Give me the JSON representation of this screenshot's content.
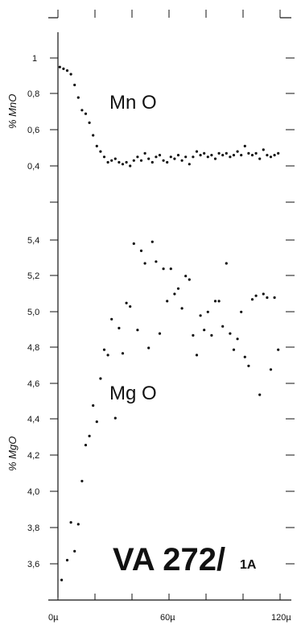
{
  "chart_data": [
    {
      "type": "scatter",
      "title": "Mn O",
      "ylabel": "% MnO",
      "xlabel": "",
      "x_tick_labels": [
        "0µ",
        "60µ",
        "120µ"
      ],
      "xlim": [
        0,
        120
      ],
      "ylim": [
        0.27,
        1.05
      ],
      "y_ticks": [
        "1",
        "0,8",
        "0,6",
        "0,4"
      ],
      "grid": false,
      "series": [
        {
          "x": [
            1,
            3,
            5,
            7,
            9,
            11,
            13,
            15,
            17,
            19,
            21,
            23,
            25,
            27,
            29,
            31,
            33,
            35,
            37,
            39,
            41,
            43,
            45,
            47,
            49,
            51,
            53,
            55,
            57,
            59,
            61,
            63,
            65,
            67,
            69,
            71,
            73,
            75,
            77,
            79,
            81,
            83,
            85,
            87,
            89,
            91,
            93,
            95,
            97,
            99,
            101,
            103,
            105,
            107,
            109,
            111,
            113,
            115,
            117,
            119
          ],
          "y": [
            0.95,
            0.94,
            0.93,
            0.91,
            0.85,
            0.78,
            0.71,
            0.69,
            0.64,
            0.57,
            0.51,
            0.48,
            0.45,
            0.42,
            0.43,
            0.44,
            0.42,
            0.41,
            0.42,
            0.4,
            0.43,
            0.45,
            0.43,
            0.47,
            0.44,
            0.42,
            0.45,
            0.46,
            0.43,
            0.42,
            0.45,
            0.44,
            0.46,
            0.43,
            0.45,
            0.41,
            0.45,
            0.48,
            0.46,
            0.47,
            0.45,
            0.46,
            0.44,
            0.47,
            0.46,
            0.47,
            0.45,
            0.46,
            0.48,
            0.46,
            0.51,
            0.47,
            0.46,
            0.47,
            0.44,
            0.49,
            0.46,
            0.45,
            0.46,
            0.47
          ]
        }
      ]
    },
    {
      "type": "scatter",
      "title": "Mg O",
      "ylabel": "% MgO",
      "xlabel": "",
      "x_tick_labels": [
        "0µ",
        "60µ",
        "120µ"
      ],
      "xlim": [
        0,
        120
      ],
      "ylim": [
        3.45,
        5.45
      ],
      "y_ticks": [
        "5,4",
        "5,2",
        "5,0",
        "4,8",
        "4,6",
        "4,4",
        "4,2",
        "4,0",
        "3,8",
        "3,6"
      ],
      "grid": false,
      "series": [
        {
          "x": [
            2,
            5,
            7,
            9,
            11,
            13,
            15,
            17,
            19,
            21,
            23,
            25,
            27,
            29,
            31,
            33,
            35,
            37,
            39,
            41,
            43,
            45,
            47,
            49,
            51,
            53,
            55,
            57,
            59,
            61,
            63,
            65,
            67,
            69,
            71,
            73,
            75,
            77,
            79,
            81,
            83,
            85,
            87,
            89,
            91,
            93,
            95,
            97,
            99,
            101,
            103,
            105,
            107,
            109,
            111,
            113,
            115,
            117,
            119
          ],
          "y": [
            3.51,
            3.62,
            3.83,
            3.67,
            3.82,
            4.06,
            4.26,
            4.31,
            4.48,
            4.39,
            4.63,
            4.79,
            4.76,
            4.96,
            4.41,
            4.91,
            4.77,
            5.05,
            5.03,
            5.38,
            4.9,
            5.34,
            5.27,
            4.8,
            5.39,
            5.28,
            4.88,
            5.24,
            5.06,
            5.24,
            5.1,
            5.13,
            5.02,
            5.2,
            5.18,
            4.87,
            4.76,
            4.98,
            4.9,
            5.0,
            4.87,
            5.06,
            5.06,
            4.92,
            5.27,
            4.88,
            4.79,
            4.85,
            5.0,
            4.75,
            4.7,
            5.07,
            5.09,
            4.54,
            5.1,
            5.08,
            4.68,
            5.08,
            4.79
          ]
        }
      ]
    }
  ],
  "sample_label": "VA 272/",
  "sample_sub": "1A"
}
